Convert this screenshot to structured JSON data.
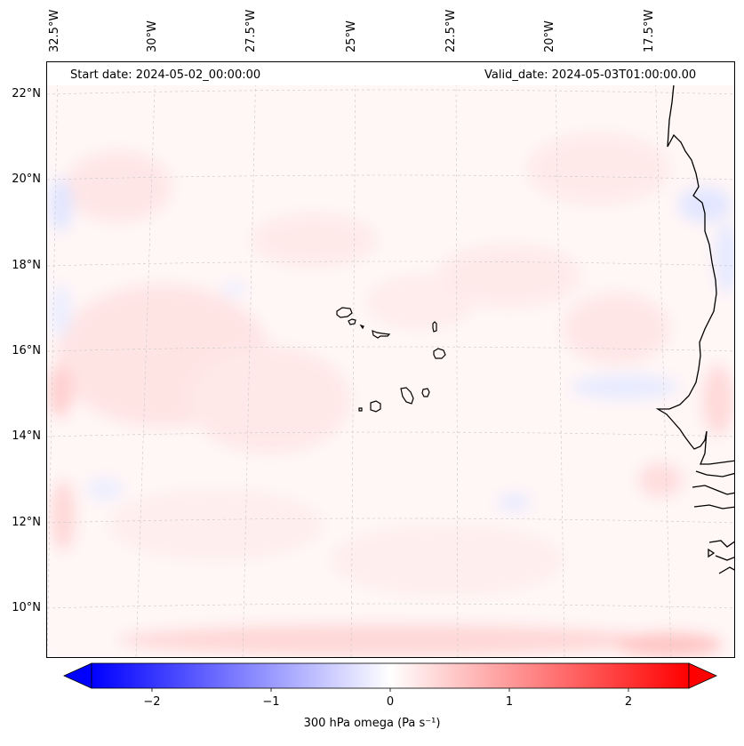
{
  "map": {
    "start_date": "Start date: 2024-05-02_00:00:00",
    "valid_date": "Valid_date: 2024-05-03T01:00:00.00",
    "lon_labels": [
      "32.5°W",
      "30°W",
      "27.5°W",
      "25°W",
      "22.5°W",
      "20°W",
      "17.5°W"
    ],
    "lat_labels": [
      "22°N",
      "20°N",
      "18°N",
      "16°N",
      "14°N",
      "12°N",
      "10°N"
    ],
    "gridlines": true,
    "features": [
      "cape-verde-islands",
      "west-africa-coastline"
    ]
  },
  "colorbar": {
    "label": "300 hPa omega (Pa s⁻¹)",
    "ticks": [
      "−2",
      "−1",
      "0",
      "1",
      "2"
    ],
    "range": [
      -2.6,
      2.6
    ],
    "cmap": "bwr",
    "low_color": "#0000ff",
    "mid_color": "#ffffff",
    "high_color": "#ff0000"
  }
}
